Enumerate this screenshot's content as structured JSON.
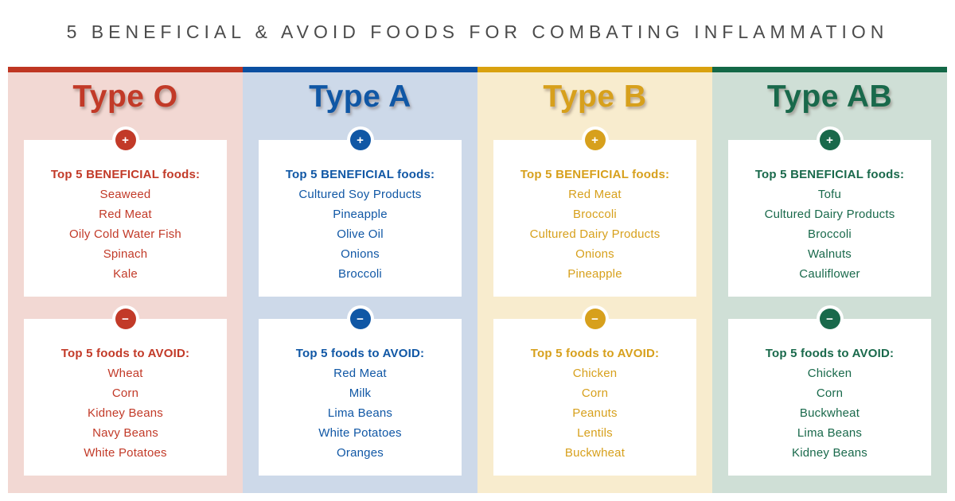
{
  "page": {
    "title": "5 BENEFICIAL & AVOID FOODS FOR COMBATING INFLAMMATION",
    "title_color": "#4b4b4b"
  },
  "badges": {
    "plus": "+",
    "minus": "−"
  },
  "columns": [
    {
      "label": "Type O",
      "accent": "#c23a28",
      "background": "#f2d8d3",
      "beneficial": {
        "heading": "Top 5 BENEFICIAL foods:",
        "items": [
          "Seaweed",
          "Red Meat",
          "Oily Cold Water Fish",
          "Spinach",
          "Kale"
        ]
      },
      "avoid": {
        "heading": "Top 5 foods to AVOID:",
        "items": [
          "Wheat",
          "Corn",
          "Kidney Beans",
          "Navy Beans",
          "White Potatoes"
        ]
      }
    },
    {
      "label": "Type A",
      "accent": "#1057a5",
      "background": "#cdd9e9",
      "beneficial": {
        "heading": "Top 5 BENEFICIAL foods:",
        "items": [
          "Cultured Soy Products",
          "Pineapple",
          "Olive Oil",
          "Onions",
          "Broccoli"
        ]
      },
      "avoid": {
        "heading": "Top 5 foods to AVOID:",
        "items": [
          "Red Meat",
          "Milk",
          "Lima Beans",
          "White Potatoes",
          "Oranges"
        ]
      }
    },
    {
      "label": "Type B",
      "accent": "#d7a01c",
      "background": "#f8ecce",
      "beneficial": {
        "heading": "Top 5 BENEFICIAL foods:",
        "items": [
          "Red Meat",
          "Broccoli",
          "Cultured Dairy Products",
          "Onions",
          "Pineapple"
        ]
      },
      "avoid": {
        "heading": "Top 5 foods to AVOID:",
        "items": [
          "Chicken",
          "Corn",
          "Peanuts",
          "Lentils",
          "Buckwheat"
        ]
      }
    },
    {
      "label": "Type AB",
      "accent": "#19694b",
      "background": "#cfdfd6",
      "beneficial": {
        "heading": "Top 5 BENEFICIAL foods:",
        "items": [
          "Tofu",
          "Cultured Dairy Products",
          "Broccoli",
          "Walnuts",
          "Cauliflower"
        ]
      },
      "avoid": {
        "heading": "Top 5 foods to AVOID:",
        "items": [
          "Chicken",
          "Corn",
          "Buckwheat",
          "Lima Beans",
          "Kidney Beans"
        ]
      }
    }
  ]
}
